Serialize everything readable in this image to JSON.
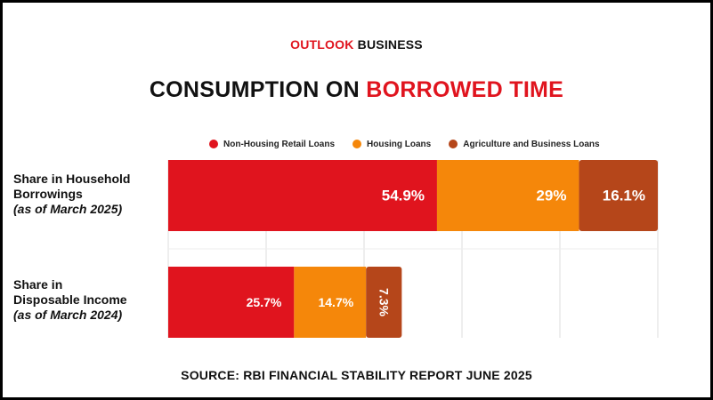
{
  "brand": {
    "part1": "OUTLOOK",
    "part2": "BUSINESS"
  },
  "headline": {
    "part1": "CONSUMPTION ON",
    "part2": "BORROWED TIME"
  },
  "source": "SOURCE: RBI FINANCIAL STABILITY REPORT JUNE 2025",
  "colors": {
    "non_housing": "#e0141e",
    "housing": "#f5870a",
    "agriculture": "#b5461a",
    "brand_red": "#e0141e"
  },
  "chart_data": {
    "type": "bar",
    "orientation": "horizontal",
    "stacked": true,
    "title": "CONSUMPTION ON BORROWED TIME",
    "xlim": [
      0,
      100
    ],
    "grid": true,
    "legend_position": "top",
    "categories": [
      {
        "line1": "Share in Household",
        "line2": "Borrowings",
        "sub": "(as of March 2025)"
      },
      {
        "line1": "Share in",
        "line2": "Disposable Income",
        "sub": "(as of March 2024)"
      }
    ],
    "series": [
      {
        "name": "Non-Housing Retail Loans",
        "color": "#e0141e",
        "values": [
          54.9,
          25.7
        ],
        "labels": [
          "54.9%",
          "25.7%"
        ]
      },
      {
        "name": "Housing Loans",
        "color": "#f5870a",
        "values": [
          29,
          14.7
        ],
        "labels": [
          "29%",
          "14.7%"
        ]
      },
      {
        "name": "Agriculture and Business Loans",
        "color": "#b5461a",
        "values": [
          16.1,
          7.3
        ],
        "labels": [
          "16.1%",
          "7.3%"
        ]
      }
    ]
  }
}
